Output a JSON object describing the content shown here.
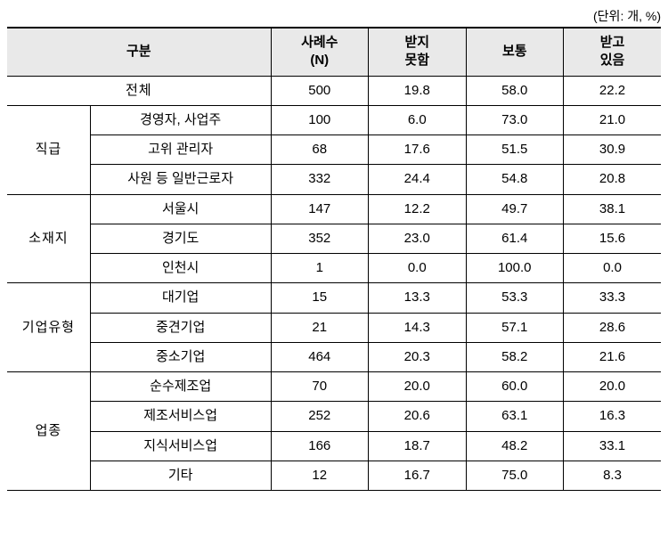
{
  "unit_text": "(단위: 개, %)",
  "header": {
    "gubun": "구분",
    "cols": [
      "사례수\n(N)",
      "받지\n못함",
      "보통",
      "받고\n있음"
    ]
  },
  "total": {
    "label": "전체",
    "values": [
      "500",
      "19.8",
      "58.0",
      "22.2"
    ]
  },
  "groups": [
    {
      "label": "직급",
      "rows": [
        {
          "label": "경영자, 사업주",
          "values": [
            "100",
            "6.0",
            "73.0",
            "21.0"
          ]
        },
        {
          "label": "고위 관리자",
          "values": [
            "68",
            "17.6",
            "51.5",
            "30.9"
          ]
        },
        {
          "label": "사원 등 일반근로자",
          "values": [
            "332",
            "24.4",
            "54.8",
            "20.8"
          ]
        }
      ]
    },
    {
      "label": "소재지",
      "rows": [
        {
          "label": "서울시",
          "values": [
            "147",
            "12.2",
            "49.7",
            "38.1"
          ]
        },
        {
          "label": "경기도",
          "values": [
            "352",
            "23.0",
            "61.4",
            "15.6"
          ]
        },
        {
          "label": "인천시",
          "values": [
            "1",
            "0.0",
            "100.0",
            "0.0"
          ]
        }
      ]
    },
    {
      "label": "기업유형",
      "rows": [
        {
          "label": "대기업",
          "values": [
            "15",
            "13.3",
            "53.3",
            "33.3"
          ]
        },
        {
          "label": "중견기업",
          "values": [
            "21",
            "14.3",
            "57.1",
            "28.6"
          ]
        },
        {
          "label": "중소기업",
          "values": [
            "464",
            "20.3",
            "58.2",
            "21.6"
          ]
        }
      ]
    },
    {
      "label": "업종",
      "rows": [
        {
          "label": "순수제조업",
          "values": [
            "70",
            "20.0",
            "60.0",
            "20.0"
          ]
        },
        {
          "label": "제조서비스업",
          "values": [
            "252",
            "20.6",
            "63.1",
            "16.3"
          ]
        },
        {
          "label": "지식서비스업",
          "values": [
            "166",
            "18.7",
            "48.2",
            "33.1"
          ]
        },
        {
          "label": "기타",
          "values": [
            "12",
            "16.7",
            "75.0",
            "8.3"
          ]
        }
      ]
    }
  ],
  "style": {
    "header_bg": "#e9e9e9",
    "border_color": "#000000",
    "font_size_pt": 15
  }
}
